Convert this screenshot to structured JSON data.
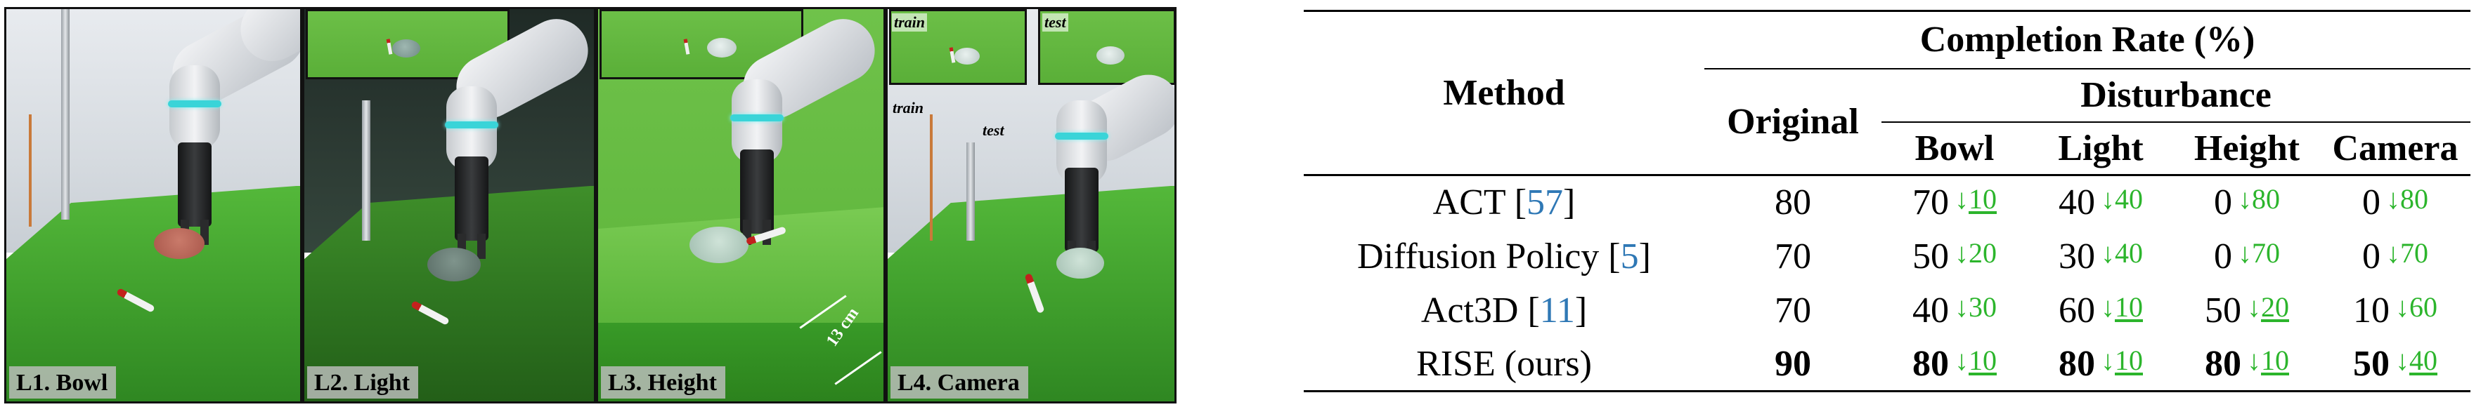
{
  "panels": [
    {
      "label": "L1. Bowl"
    },
    {
      "label": "L2. Light"
    },
    {
      "label": "L3. Height",
      "measure": "13 cm"
    },
    {
      "label": "L4. Camera",
      "train": "train",
      "test": "test",
      "inset_train": "train",
      "inset_test": "test"
    }
  ],
  "table": {
    "header": {
      "method": "Method",
      "completion": "Completion Rate (%)",
      "disturbance": "Disturbance",
      "original": "Original",
      "cols": [
        "Bowl",
        "Light",
        "Height",
        "Camera"
      ]
    },
    "rows": [
      {
        "name": "ACT [",
        "ref": "57",
        "close": "]",
        "original": "80",
        "cells": [
          {
            "v": "70",
            "d": "10",
            "u": true
          },
          {
            "v": "40",
            "d": "40",
            "u": false
          },
          {
            "v": "0",
            "d": "80",
            "u": false
          },
          {
            "v": "0",
            "d": "80",
            "u": false
          }
        ],
        "bold": false
      },
      {
        "name": "Diffusion Policy [",
        "ref": "5",
        "close": "]",
        "original": "70",
        "cells": [
          {
            "v": "50",
            "d": "20",
            "u": false
          },
          {
            "v": "30",
            "d": "40",
            "u": false
          },
          {
            "v": "0",
            "d": "70",
            "u": false
          },
          {
            "v": "0",
            "d": "70",
            "u": false
          }
        ],
        "bold": false
      },
      {
        "name": "Act3D [",
        "ref": "11",
        "close": "]",
        "original": "70",
        "cells": [
          {
            "v": "40",
            "d": "30",
            "u": false
          },
          {
            "v": "60",
            "d": "10",
            "u": true
          },
          {
            "v": "50",
            "d": "20",
            "u": true
          },
          {
            "v": "10",
            "d": "60",
            "u": false
          }
        ],
        "bold": false
      },
      {
        "name": "RISE (ours)",
        "ref": "",
        "close": "",
        "original": "90",
        "cells": [
          {
            "v": "80",
            "d": "10",
            "u": true
          },
          {
            "v": "80",
            "d": "10",
            "u": true
          },
          {
            "v": "80",
            "d": "10",
            "u": true
          },
          {
            "v": "50",
            "d": "40",
            "u": true
          }
        ],
        "bold": true
      }
    ],
    "arrow": "↓",
    "colors": {
      "delta": "#2cb52c",
      "ref": "#2f78b5"
    }
  }
}
